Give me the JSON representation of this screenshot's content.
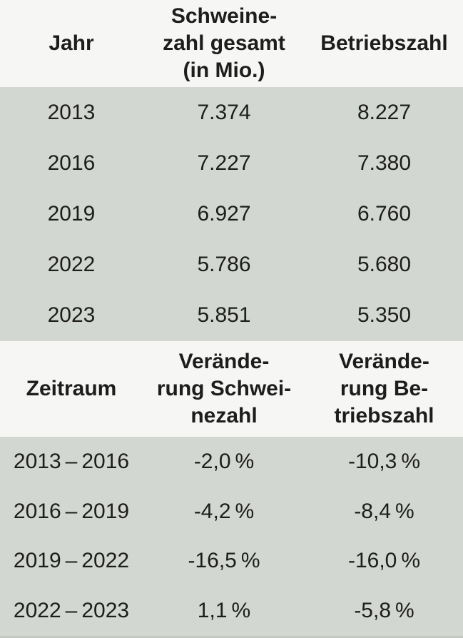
{
  "colors": {
    "header_background": "#f6f6f4",
    "data_background": "#d3d7d1",
    "text": "#1d1d1b"
  },
  "display": {
    "header1": {
      "col1": "Jahr",
      "col2": "Schweine-\nzahl gesamt\n(in Mio.)",
      "col3": "Betriebszahl"
    },
    "header2": {
      "col1": "Zeitraum",
      "col2": "Verände-\nrung Schwei-\nnezahl",
      "col3": "Verände-\nrung Be-\ntriebszahl"
    }
  },
  "chart_data": [
    {
      "type": "table",
      "columns": [
        "Jahr",
        "Schweinezahl gesamt (in Mio.)",
        "Betriebszahl"
      ],
      "rows": [
        [
          "2013",
          "7.374",
          "8.227"
        ],
        [
          "2016",
          "7.227",
          "7.380"
        ],
        [
          "2019",
          "6.927",
          "6.760"
        ],
        [
          "2022",
          "5.786",
          "5.680"
        ],
        [
          "2023",
          "5.851",
          "5.350"
        ]
      ]
    },
    {
      "type": "table",
      "columns": [
        "Zeitraum",
        "Veränderung Schweinezahl",
        "Veränderung Betriebszahl"
      ],
      "rows": [
        [
          "2013 – 2016",
          "-2,0 %",
          "-10,3 %"
        ],
        [
          "2016 – 2019",
          "-4,2 %",
          "-8,4 %"
        ],
        [
          "2019 – 2022",
          "-16,5 %",
          "-16,0 %"
        ],
        [
          "2022 – 2023",
          "1,1 %",
          "-5,8 %"
        ]
      ]
    }
  ]
}
